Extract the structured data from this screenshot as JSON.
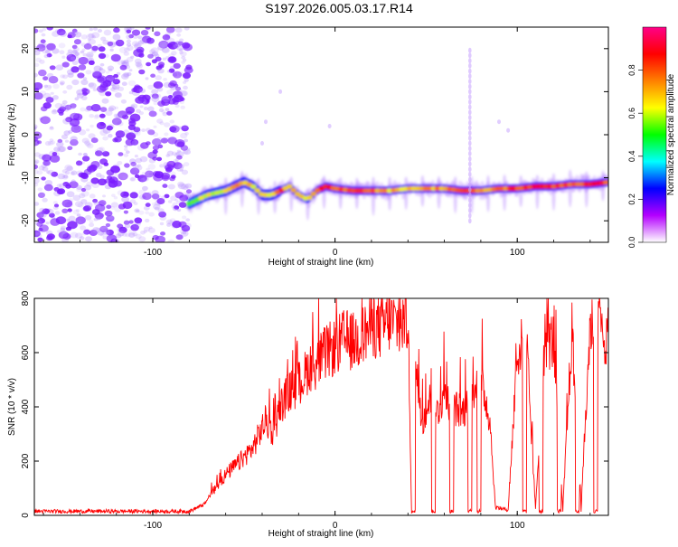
{
  "title": "S197.2026.005.03.17.R14",
  "colors": {
    "signal": "#ff0000",
    "scatter": "#7b2cff",
    "axis": "#000000",
    "background": "#ffffff"
  },
  "chart_data": [
    {
      "type": "heatmap",
      "name": "spectrogram",
      "xlabel": "Height of straight line (km)",
      "ylabel": "Frequency (Hz)",
      "xlim": [
        -165,
        150
      ],
      "ylim": [
        -25,
        25
      ],
      "xticks": [
        -100,
        0,
        100
      ],
      "yticks": [
        -20,
        -10,
        0,
        10,
        20
      ],
      "colorbar": {
        "label": "Normalized spectral amplitude",
        "range": [
          0,
          1
        ],
        "ticks": [
          0.0,
          0.2,
          0.4,
          0.6,
          0.8
        ],
        "tick_labels": [
          "0.0",
          "0.2",
          "0.4",
          "0.6",
          "0.8"
        ],
        "colormap": [
          "#ffffff",
          "#b400ff",
          "#0000ff",
          "#00ffff",
          "#00ff00",
          "#ffff00",
          "#ff8000",
          "#ff0000",
          "#ff0088"
        ]
      },
      "noise_region": {
        "x_range": [
          -165,
          -80
        ],
        "freq_range": [
          -25,
          25
        ],
        "amplitude": 0.15
      },
      "line_trace": {
        "x": [
          -80,
          -70,
          -60,
          -50,
          -45,
          -40,
          -35,
          -30,
          -25,
          -20,
          -15,
          -10,
          -5,
          0,
          10,
          20,
          30,
          40,
          50,
          60,
          70,
          80,
          90,
          100,
          110,
          120,
          130,
          140,
          150
        ],
        "freq": [
          -16,
          -14,
          -13,
          -11,
          -12,
          -14,
          -14,
          -13,
          -12,
          -14,
          -15,
          -13,
          -12,
          -12.5,
          -13,
          -13,
          -13,
          -12.5,
          -12.5,
          -12.5,
          -13,
          -13,
          -12.5,
          -12.5,
          -12,
          -12,
          -11.5,
          -11.5,
          -11
        ],
        "amplitude": [
          0.4,
          0.45,
          0.55,
          0.7,
          0.5,
          0.5,
          0.55,
          0.8,
          0.6,
          0.5,
          0.5,
          0.65,
          0.95,
          0.7,
          0.95,
          0.8,
          0.6,
          0.6,
          0.65,
          0.7,
          0.85,
          0.6,
          0.75,
          0.85,
          0.9,
          0.9,
          0.8,
          0.85,
          0.9
        ]
      },
      "spike_line": {
        "x": 74,
        "freq_range": [
          -20,
          20
        ]
      }
    },
    {
      "type": "line",
      "name": "snr",
      "xlabel": "Height of straight line (km)",
      "ylabel": "SNR (10 * v/v)",
      "xlim": [
        -165,
        150
      ],
      "ylim": [
        0,
        800
      ],
      "xticks": [
        -100,
        0,
        100
      ],
      "yticks": [
        0,
        200,
        400,
        600,
        800
      ],
      "series": [
        {
          "name": "SNR",
          "x": [
            -165,
            -120,
            -80,
            -72,
            -68,
            -60,
            -52,
            -45,
            -38,
            -34,
            -30,
            -26,
            -22,
            -18,
            -14,
            -10,
            -5,
            0,
            5,
            10,
            15,
            20,
            25,
            30,
            35,
            40,
            42,
            44,
            48,
            52,
            56,
            60,
            65,
            70,
            74,
            78,
            82,
            85,
            88,
            95,
            100,
            105,
            110,
            115,
            120,
            125,
            130,
            135,
            140,
            145,
            150
          ],
          "y": [
            15,
            15,
            15,
            40,
            80,
            150,
            200,
            250,
            350,
            300,
            400,
            450,
            470,
            500,
            550,
            560,
            600,
            620,
            650,
            640,
            660,
            700,
            690,
            720,
            700,
            720,
            20,
            550,
            350,
            420,
            380,
            450,
            400,
            380,
            420,
            500,
            450,
            350,
            30,
            20,
            600,
            650,
            20,
            650,
            640,
            20,
            680,
            20,
            700,
            680,
            650
          ]
        }
      ],
      "dropouts": [
        [
          42,
          44
        ],
        [
          53,
          55
        ],
        [
          63,
          65
        ],
        [
          73,
          75
        ],
        [
          78,
          80
        ],
        [
          103,
          105
        ],
        [
          112,
          114
        ],
        [
          122,
          124
        ],
        [
          132,
          134
        ],
        [
          142,
          144
        ]
      ]
    }
  ]
}
